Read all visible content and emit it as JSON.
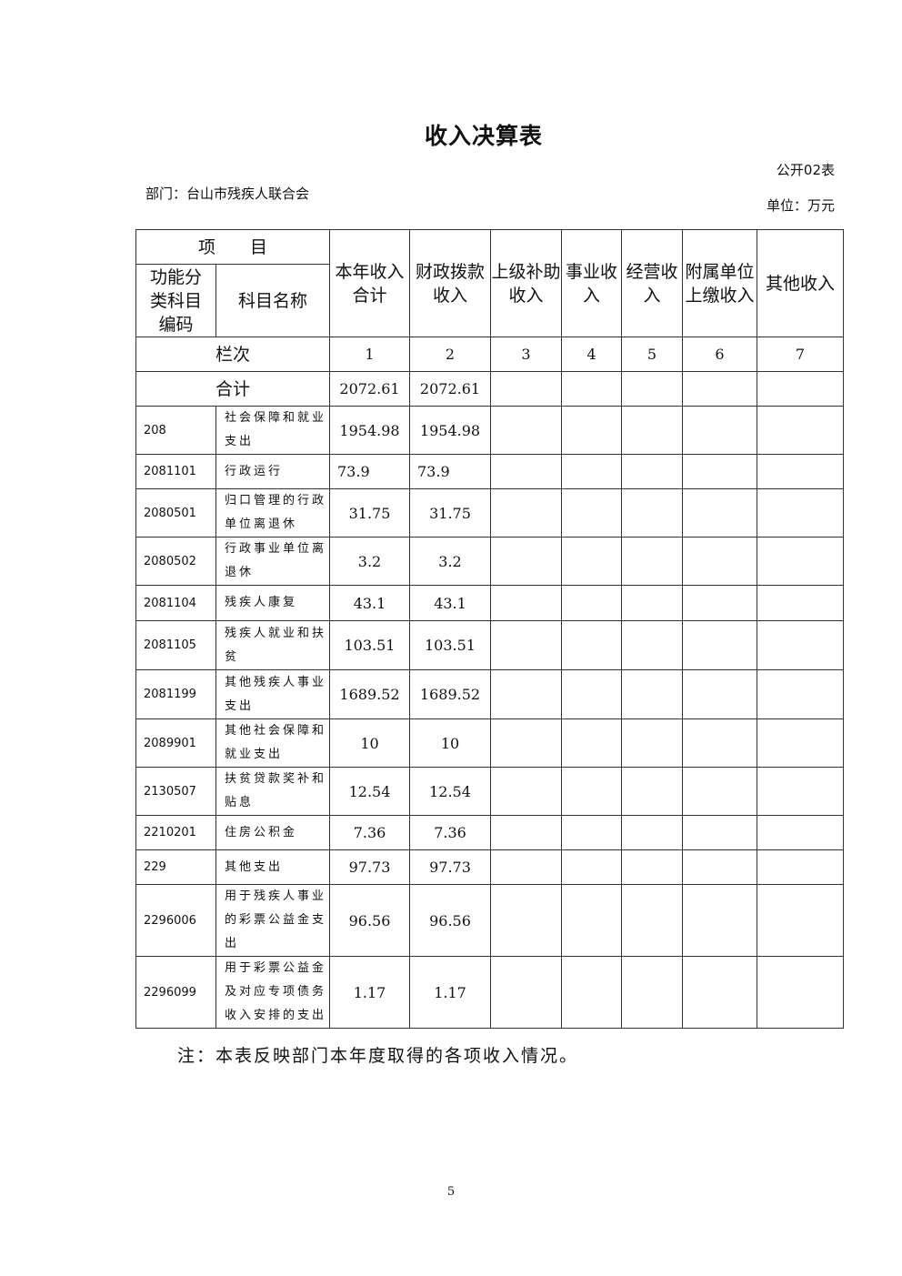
{
  "title": "收入决算表",
  "form_no": "公开02表",
  "department": "部门：台山市残疾人联合会",
  "unit": "单位：万元",
  "table": {
    "group_header": "项　　目",
    "sub_headers": [
      "功能分类科目编码",
      "科目名称"
    ],
    "columns": [
      "本年收入合计",
      "财政拨款收入",
      "上级补助收入",
      "事业收入",
      "经营收入",
      "附属单位上缴收入",
      "其他收入"
    ],
    "index_label": "栏次",
    "index_values": [
      "1",
      "2",
      "3",
      "4",
      "5",
      "6",
      "7"
    ],
    "total_label": "合计",
    "total_values": [
      "2072.61",
      "2072.61",
      "",
      "",
      "",
      "",
      ""
    ],
    "rows": [
      {
        "code": "208",
        "name": "社会保障和就业支出",
        "values": [
          "1954.98",
          "1954.98",
          "",
          "",
          "",
          "",
          ""
        ]
      },
      {
        "code": "2081101",
        "name": "行政运行",
        "values": [
          "73.9",
          "73.9",
          "",
          "",
          "",
          "",
          ""
        ]
      },
      {
        "code": "2080501",
        "name": "归口管理的行政单位离退休",
        "values": [
          "31.75",
          "31.75",
          "",
          "",
          "",
          "",
          ""
        ]
      },
      {
        "code": "2080502",
        "name": "行政事业单位离退休",
        "values": [
          "3.2",
          "3.2",
          "",
          "",
          "",
          "",
          ""
        ]
      },
      {
        "code": "2081104",
        "name": "残疾人康复",
        "values": [
          "43.1",
          "43.1",
          "",
          "",
          "",
          "",
          ""
        ]
      },
      {
        "code": "2081105",
        "name": "残疾人就业和扶贫",
        "values": [
          "103.51",
          "103.51",
          "",
          "",
          "",
          "",
          ""
        ]
      },
      {
        "code": "2081199",
        "name": "其他残疾人事业支出",
        "values": [
          "1689.52",
          "1689.52",
          "",
          "",
          "",
          "",
          ""
        ]
      },
      {
        "code": "2089901",
        "name": "其他社会保障和就业支出",
        "values": [
          "10",
          "10",
          "",
          "",
          "",
          "",
          ""
        ]
      },
      {
        "code": "2130507",
        "name": "扶贫贷款奖补和贴息",
        "values": [
          "12.54",
          "12.54",
          "",
          "",
          "",
          "",
          ""
        ]
      },
      {
        "code": "2210201",
        "name": "住房公积金",
        "values": [
          "7.36",
          "7.36",
          "",
          "",
          "",
          "",
          ""
        ]
      },
      {
        "code": "229",
        "name": "其他支出",
        "values": [
          "97.73",
          "97.73",
          "",
          "",
          "",
          "",
          ""
        ]
      },
      {
        "code": "2296006",
        "name": "用于残疾人事业的彩票公益金支出",
        "values": [
          "96.56",
          "96.56",
          "",
          "",
          "",
          "",
          ""
        ]
      },
      {
        "code": "2296099",
        "name": "用于彩票公益金及对应专项债务收入安排的支出",
        "values": [
          "1.17",
          "1.17",
          "",
          "",
          "",
          "",
          ""
        ]
      }
    ]
  },
  "note": "注：本表反映部门本年度取得的各项收入情况。",
  "page_number": "5"
}
